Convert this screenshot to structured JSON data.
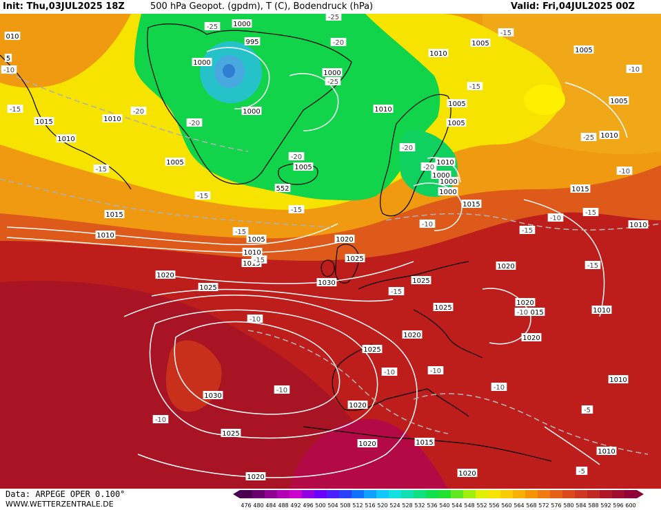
{
  "header": {
    "init": "Init: Thu,03JUL2025 18Z",
    "title": "500 hPa Geopot. (gpdm), T (C), Bodendruck (hPa)",
    "valid": "Valid: Fri,04JUL2025 00Z"
  },
  "footer": {
    "source": "Data: ARPEGE OPER 0.100°",
    "website": "WWW.WETTERZENTRALE.DE"
  },
  "colors": {
    "low_core": "#2f7fd0",
    "low_ring": "#25c3c9",
    "trough": "#12d44a",
    "ridge_edge": "#f0c000",
    "yellow": "#f7e300",
    "orange": "#ef9a10",
    "orange_red": "#dd5a1a",
    "red": "#bd1e1c",
    "dark_red": "#9c0a24",
    "crimson": "#b30a46"
  },
  "scale": {
    "values": [
      "476",
      "480",
      "484",
      "488",
      "492",
      "496",
      "500",
      "504",
      "508",
      "512",
      "516",
      "520",
      "524",
      "528",
      "532",
      "536",
      "540",
      "544",
      "548",
      "552",
      "556",
      "560",
      "564",
      "568",
      "572",
      "576",
      "580",
      "584",
      "588",
      "592",
      "596",
      "600"
    ],
    "colors": [
      "#4a0050",
      "#6a006e",
      "#8f0092",
      "#b400b4",
      "#cc00cc",
      "#9000e0",
      "#6a00ff",
      "#4a20ff",
      "#2a40ff",
      "#1070ff",
      "#10a0ff",
      "#10c8ff",
      "#10e0e0",
      "#10e0b0",
      "#10e080",
      "#10e050",
      "#20e030",
      "#60e820",
      "#a0ee10",
      "#e0f000",
      "#f7e300",
      "#f8cc00",
      "#f8b000",
      "#f49400",
      "#ee7a10",
      "#e66018",
      "#da4a1c",
      "#cc3820",
      "#c02824",
      "#b01828",
      "#a00c30",
      "#900038"
    ]
  },
  "pressure_labels": [
    "1000",
    "995",
    "1000",
    "1000",
    "1000",
    "1005",
    "1005",
    "1010",
    "1005",
    "1010",
    "1010",
    "1015",
    "1005",
    "1005",
    "1015",
    "1010",
    "1015",
    "1010",
    "1000",
    "1005",
    "1010",
    "1015",
    "1020",
    "1025",
    "1030",
    "1020",
    "1025",
    "1025",
    "1025",
    "1020",
    "1020",
    "1020",
    "1020",
    "1015",
    "1010",
    "1030",
    "1025",
    "1020",
    "1020",
    "1015",
    "1010",
    "1020",
    "1020",
    "1025",
    "1010",
    "1010",
    "1000",
    "1005",
    "1010",
    "1015",
    "1010",
    "1005",
    "1000",
    "552",
    "010",
    "5"
  ],
  "temperature_labels": [
    "-25",
    "-25",
    "-20",
    "-25",
    "-15",
    "-15",
    "-15",
    "-15",
    "-20",
    "-20",
    "-20",
    "-15",
    "-15",
    "-15",
    "-15",
    "-25",
    "-20",
    "-20",
    "-10",
    "-15",
    "-15",
    "-15",
    "-10",
    "-10",
    "-10",
    "-10",
    "-10",
    "-10",
    "-10",
    "-10",
    "-15",
    "-10",
    "-5",
    "-5",
    "-10",
    "-10"
  ]
}
